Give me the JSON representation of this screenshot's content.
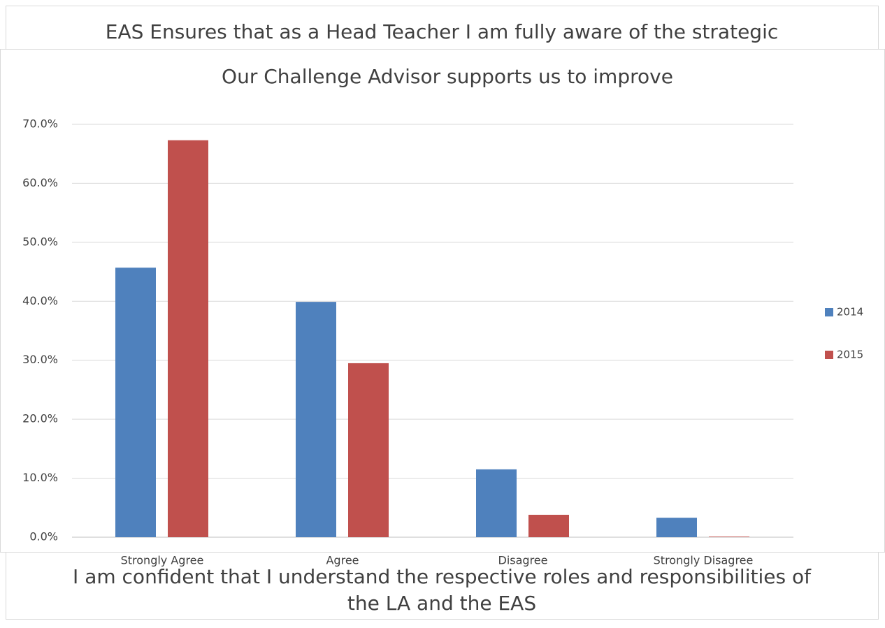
{
  "background_charts": [
    {
      "title_lines": [
        "EAS Ensures that as a Head Teacher I am fully aware of the strategic"
      ]
    },
    {
      "title_lines": [
        "I am confident that I understand the respective roles and responsibilities of",
        "the LA and the EAS"
      ]
    }
  ],
  "chart_data": {
    "type": "bar",
    "title": "Our Challenge Advisor supports us to improve",
    "categories": [
      "Strongly Agree",
      "Agree",
      "Disagree",
      "Strongly Disagree"
    ],
    "series": [
      {
        "name": "2014",
        "color": "#4f81bd",
        "values": [
          45.7,
          39.9,
          11.5,
          3.3
        ]
      },
      {
        "name": "2015",
        "color": "#c0504d",
        "values": [
          67.3,
          29.5,
          3.8,
          0.1
        ]
      }
    ],
    "ylim": [
      0,
      70
    ],
    "yticks": [
      {
        "value": 0,
        "label": "0.0%"
      },
      {
        "value": 10,
        "label": "10.0%"
      },
      {
        "value": 20,
        "label": "20.0%"
      },
      {
        "value": 30,
        "label": "30.0%"
      },
      {
        "value": 40,
        "label": "40.0%"
      },
      {
        "value": 50,
        "label": "50.0%"
      },
      {
        "value": 60,
        "label": "60.0%"
      },
      {
        "value": 70,
        "label": "70.0%"
      }
    ],
    "grid": true,
    "legend": "right"
  }
}
